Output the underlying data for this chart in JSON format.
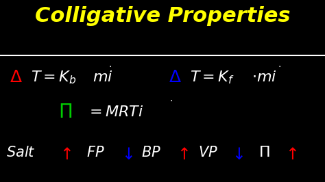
{
  "bg_color": "#000000",
  "title": "Colligative Properties",
  "title_color": "#FFFF00",
  "title_fontsize": 22,
  "line_color": "#FFFFFF",
  "delta1_color": "#FF0000",
  "delta2_color": "#0000FF",
  "pi_color": "#00CC00",
  "arrow_up_color": "#FF0000",
  "arrow_down_color": "#0000FF",
  "white_color": "#FFFFFF",
  "figw": 4.74,
  "figh": 2.66,
  "dpi": 100
}
